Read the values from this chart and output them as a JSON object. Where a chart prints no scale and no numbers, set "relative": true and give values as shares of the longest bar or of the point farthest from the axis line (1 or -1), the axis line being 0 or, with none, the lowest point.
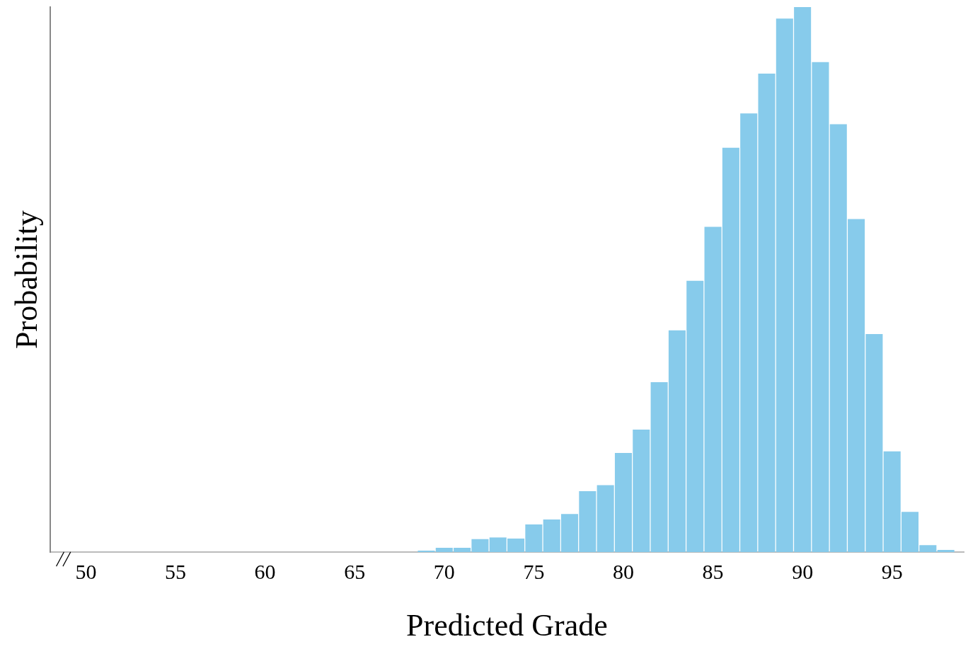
{
  "chart_data": {
    "type": "bar",
    "xlabel": "Predicted Grade",
    "ylabel": "Probability",
    "relative": true,
    "x": [
      69,
      70,
      71,
      72,
      73,
      74,
      75,
      76,
      77,
      78,
      79,
      80,
      81,
      82,
      83,
      84,
      85,
      86,
      87,
      88,
      89,
      90,
      91,
      92,
      93,
      94,
      95,
      96,
      97,
      98
    ],
    "values": [
      0.003,
      0.008,
      0.008,
      0.024,
      0.027,
      0.025,
      0.051,
      0.06,
      0.07,
      0.112,
      0.123,
      0.182,
      0.225,
      0.312,
      0.407,
      0.498,
      0.597,
      0.742,
      0.805,
      0.878,
      0.979,
      1,
      0.899,
      0.785,
      0.611,
      0.4,
      0.185,
      0.074,
      0.013,
      0.004
    ],
    "color": "#87cbeb",
    "xlim": [
      48,
      99
    ],
    "xticks": [
      50,
      55,
      60,
      65,
      70,
      75,
      80,
      85,
      90,
      95
    ],
    "grid": false,
    "legend": false
  }
}
